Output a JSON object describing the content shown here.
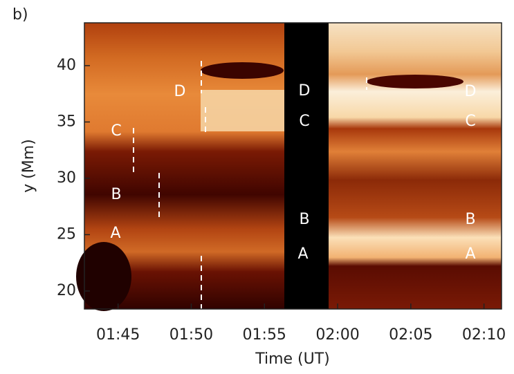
{
  "chart_data": {
    "type": "image",
    "panel_label": "b)",
    "x_label": "Time (UT)",
    "y_label": "y (Mm)",
    "xlim": [
      102.7,
      131.2
    ],
    "xticks": [
      {
        "value": 105,
        "label": "01:45"
      },
      {
        "value": 110,
        "label": "01:50"
      },
      {
        "value": 115,
        "label": "01:55"
      },
      {
        "value": 120,
        "label": "02:00"
      },
      {
        "value": 125,
        "label": "02:05"
      },
      {
        "value": 130,
        "label": "02:10"
      }
    ],
    "ylim": [
      18.4,
      43.8
    ],
    "yticks": [
      20,
      25,
      30,
      35,
      40
    ],
    "annotations": [
      "C",
      "B",
      "A",
      "D",
      "D",
      "C",
      "B",
      "A",
      "D",
      "C",
      "B",
      "A"
    ]
  }
}
